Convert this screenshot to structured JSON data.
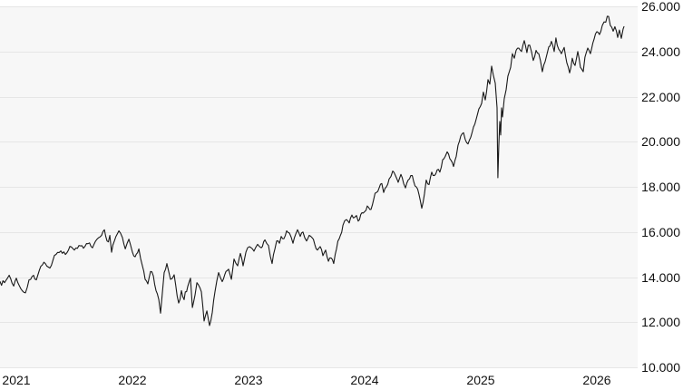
{
  "colors": {
    "page_background": "#ffffff",
    "plot_background": "#f7f7f7",
    "grid_line": "#e6e6e6",
    "line": "#191919",
    "axis_text": "#111111"
  },
  "chart_data": {
    "type": "line",
    "title": "",
    "legend": {
      "visible": false
    },
    "grid": {
      "horizontal": true,
      "vertical": false
    },
    "x_axis": {
      "position": "bottom",
      "tick_labels": [
        "2021",
        "2022",
        "2023",
        "2024",
        "2025",
        "2026"
      ],
      "tick_years": [
        2021,
        2022,
        2023,
        2024,
        2025,
        2026
      ],
      "range_years": [
        2020.859,
        2026.352
      ]
    },
    "y_axis": {
      "position": "right",
      "number_format": "dot-thousands",
      "tick_labels": [
        "26.000",
        "24.000",
        "22.000",
        "20.000",
        "18.000",
        "16.000",
        "14.000",
        "12.000",
        "10.000"
      ],
      "tick_values": [
        26000,
        24000,
        22000,
        20000,
        18000,
        16000,
        14000,
        12000,
        10000
      ],
      "range": [
        10000,
        26000
      ]
    },
    "series": [
      {
        "name": "index-price",
        "color": "#191919",
        "points": [
          [
            2020.859,
            13800
          ],
          [
            2020.898,
            13750
          ],
          [
            2020.938,
            14080
          ],
          [
            2020.977,
            13600
          ],
          [
            2021.0,
            13950
          ],
          [
            2021.039,
            13480
          ],
          [
            2021.078,
            13300
          ],
          [
            2021.109,
            13880
          ],
          [
            2021.148,
            14080
          ],
          [
            2021.172,
            13880
          ],
          [
            2021.211,
            14480
          ],
          [
            2021.25,
            14600
          ],
          [
            2021.289,
            14400
          ],
          [
            2021.328,
            14960
          ],
          [
            2021.383,
            15160
          ],
          [
            2021.422,
            15000
          ],
          [
            2021.461,
            15360
          ],
          [
            2021.5,
            15200
          ],
          [
            2021.539,
            15400
          ],
          [
            2021.578,
            15280
          ],
          [
            2021.617,
            15480
          ],
          [
            2021.656,
            15300
          ],
          [
            2021.695,
            15680
          ],
          [
            2021.734,
            15850
          ],
          [
            2021.758,
            16100
          ],
          [
            2021.781,
            15600
          ],
          [
            2021.805,
            15850
          ],
          [
            2021.82,
            15100
          ],
          [
            2021.844,
            15600
          ],
          [
            2021.883,
            16050
          ],
          [
            2021.914,
            15750
          ],
          [
            2021.938,
            15250
          ],
          [
            2021.969,
            15680
          ],
          [
            2022.0,
            15100
          ],
          [
            2022.023,
            14900
          ],
          [
            2022.055,
            15250
          ],
          [
            2022.086,
            14500
          ],
          [
            2022.109,
            13900
          ],
          [
            2022.133,
            13700
          ],
          [
            2022.156,
            14250
          ],
          [
            2022.18,
            14050
          ],
          [
            2022.203,
            13400
          ],
          [
            2022.227,
            13000
          ],
          [
            2022.242,
            12400
          ],
          [
            2022.258,
            13300
          ],
          [
            2022.273,
            14200
          ],
          [
            2022.297,
            14600
          ],
          [
            2022.328,
            13900
          ],
          [
            2022.359,
            14100
          ],
          [
            2022.398,
            12850
          ],
          [
            2022.422,
            13400
          ],
          [
            2022.445,
            13000
          ],
          [
            2022.477,
            13600
          ],
          [
            2022.5,
            13950
          ],
          [
            2022.516,
            12650
          ],
          [
            2022.539,
            13200
          ],
          [
            2022.555,
            13750
          ],
          [
            2022.594,
            13350
          ],
          [
            2022.617,
            12050
          ],
          [
            2022.641,
            12500
          ],
          [
            2022.664,
            11850
          ],
          [
            2022.688,
            12450
          ],
          [
            2022.711,
            13350
          ],
          [
            2022.742,
            14200
          ],
          [
            2022.773,
            13800
          ],
          [
            2022.805,
            14250
          ],
          [
            2022.828,
            14350
          ],
          [
            2022.852,
            13900
          ],
          [
            2022.875,
            14800
          ],
          [
            2022.906,
            14500
          ],
          [
            2022.93,
            15050
          ],
          [
            2022.953,
            14500
          ],
          [
            2022.977,
            15100
          ],
          [
            2023.008,
            15350
          ],
          [
            2023.047,
            15150
          ],
          [
            2023.078,
            15450
          ],
          [
            2023.109,
            15300
          ],
          [
            2023.141,
            15650
          ],
          [
            2023.172,
            15400
          ],
          [
            2023.203,
            14600
          ],
          [
            2023.227,
            15250
          ],
          [
            2023.242,
            15600
          ],
          [
            2023.266,
            15500
          ],
          [
            2023.281,
            15800
          ],
          [
            2023.305,
            15700
          ],
          [
            2023.328,
            16050
          ],
          [
            2023.352,
            15950
          ],
          [
            2023.383,
            15500
          ],
          [
            2023.406,
            15900
          ],
          [
            2023.422,
            16100
          ],
          [
            2023.445,
            15800
          ],
          [
            2023.469,
            16000
          ],
          [
            2023.5,
            15600
          ],
          [
            2023.523,
            15850
          ],
          [
            2023.547,
            15750
          ],
          [
            2023.57,
            15450
          ],
          [
            2023.594,
            15200
          ],
          [
            2023.617,
            15350
          ],
          [
            2023.641,
            14950
          ],
          [
            2023.664,
            15200
          ],
          [
            2023.688,
            14700
          ],
          [
            2023.711,
            14850
          ],
          [
            2023.734,
            14600
          ],
          [
            2023.758,
            15250
          ],
          [
            2023.781,
            15700
          ],
          [
            2023.813,
            16300
          ],
          [
            2023.844,
            16550
          ],
          [
            2023.867,
            16400
          ],
          [
            2023.891,
            16750
          ],
          [
            2023.914,
            16650
          ],
          [
            2023.945,
            16480
          ],
          [
            2023.977,
            16850
          ],
          [
            2024.0,
            16900
          ],
          [
            2024.023,
            17150
          ],
          [
            2024.055,
            17000
          ],
          [
            2024.078,
            17450
          ],
          [
            2024.102,
            17750
          ],
          [
            2024.125,
            17950
          ],
          [
            2024.148,
            18150
          ],
          [
            2024.164,
            17750
          ],
          [
            2024.188,
            18000
          ],
          [
            2024.211,
            18350
          ],
          [
            2024.242,
            18700
          ],
          [
            2024.266,
            18500
          ],
          [
            2024.289,
            18200
          ],
          [
            2024.313,
            18550
          ],
          [
            2024.336,
            18150
          ],
          [
            2024.352,
            17950
          ],
          [
            2024.375,
            18300
          ],
          [
            2024.398,
            18500
          ],
          [
            2024.422,
            18250
          ],
          [
            2024.445,
            18000
          ],
          [
            2024.469,
            17650
          ],
          [
            2024.492,
            17050
          ],
          [
            2024.516,
            17700
          ],
          [
            2024.531,
            18300
          ],
          [
            2024.555,
            18100
          ],
          [
            2024.578,
            18650
          ],
          [
            2024.602,
            18500
          ],
          [
            2024.625,
            18750
          ],
          [
            2024.648,
            18650
          ],
          [
            2024.672,
            19200
          ],
          [
            2024.695,
            19350
          ],
          [
            2024.711,
            19550
          ],
          [
            2024.734,
            19250
          ],
          [
            2024.766,
            18900
          ],
          [
            2024.789,
            19350
          ],
          [
            2024.805,
            19850
          ],
          [
            2024.828,
            20250
          ],
          [
            2024.852,
            20400
          ],
          [
            2024.867,
            20100
          ],
          [
            2024.891,
            19900
          ],
          [
            2024.914,
            20200
          ],
          [
            2024.938,
            20650
          ],
          [
            2024.961,
            21000
          ],
          [
            2024.984,
            21450
          ],
          [
            2025.008,
            21700
          ],
          [
            2025.023,
            22200
          ],
          [
            2025.039,
            21850
          ],
          [
            2025.063,
            22750
          ],
          [
            2025.078,
            22550
          ],
          [
            2025.094,
            23350
          ],
          [
            2025.109,
            22950
          ],
          [
            2025.125,
            22600
          ],
          [
            2025.141,
            21500
          ],
          [
            2025.145,
            19600
          ],
          [
            2025.148,
            18400
          ],
          [
            2025.156,
            19800
          ],
          [
            2025.164,
            20900
          ],
          [
            2025.172,
            20300
          ],
          [
            2025.18,
            21500
          ],
          [
            2025.188,
            21100
          ],
          [
            2025.203,
            21900
          ],
          [
            2025.219,
            22300
          ],
          [
            2025.234,
            22900
          ],
          [
            2025.258,
            23300
          ],
          [
            2025.273,
            23900
          ],
          [
            2025.289,
            23700
          ],
          [
            2025.305,
            24050
          ],
          [
            2025.328,
            24150
          ],
          [
            2025.352,
            24000
          ],
          [
            2025.375,
            24480
          ],
          [
            2025.398,
            23950
          ],
          [
            2025.422,
            24280
          ],
          [
            2025.453,
            23600
          ],
          [
            2025.477,
            24050
          ],
          [
            2025.5,
            23900
          ],
          [
            2025.531,
            23100
          ],
          [
            2025.555,
            23550
          ],
          [
            2025.586,
            24200
          ],
          [
            2025.609,
            24450
          ],
          [
            2025.633,
            24000
          ],
          [
            2025.648,
            24600
          ],
          [
            2025.672,
            24100
          ],
          [
            2025.695,
            23900
          ],
          [
            2025.719,
            24180
          ],
          [
            2025.742,
            23500
          ],
          [
            2025.766,
            23050
          ],
          [
            2025.789,
            23700
          ],
          [
            2025.813,
            23380
          ],
          [
            2025.836,
            24000
          ],
          [
            2025.859,
            23300
          ],
          [
            2025.883,
            23100
          ],
          [
            2025.898,
            23750
          ],
          [
            2025.922,
            24150
          ],
          [
            2025.945,
            23900
          ],
          [
            2025.977,
            24550
          ],
          [
            2026.0,
            24880
          ],
          [
            2026.023,
            24750
          ],
          [
            2026.047,
            25150
          ],
          [
            2026.078,
            25300
          ],
          [
            2026.102,
            25550
          ],
          [
            2026.117,
            25150
          ],
          [
            2026.141,
            24900
          ],
          [
            2026.156,
            25100
          ],
          [
            2026.18,
            24620
          ],
          [
            2026.195,
            24950
          ],
          [
            2026.211,
            24580
          ],
          [
            2026.227,
            25000
          ],
          [
            2026.234,
            25100
          ]
        ]
      }
    ]
  }
}
